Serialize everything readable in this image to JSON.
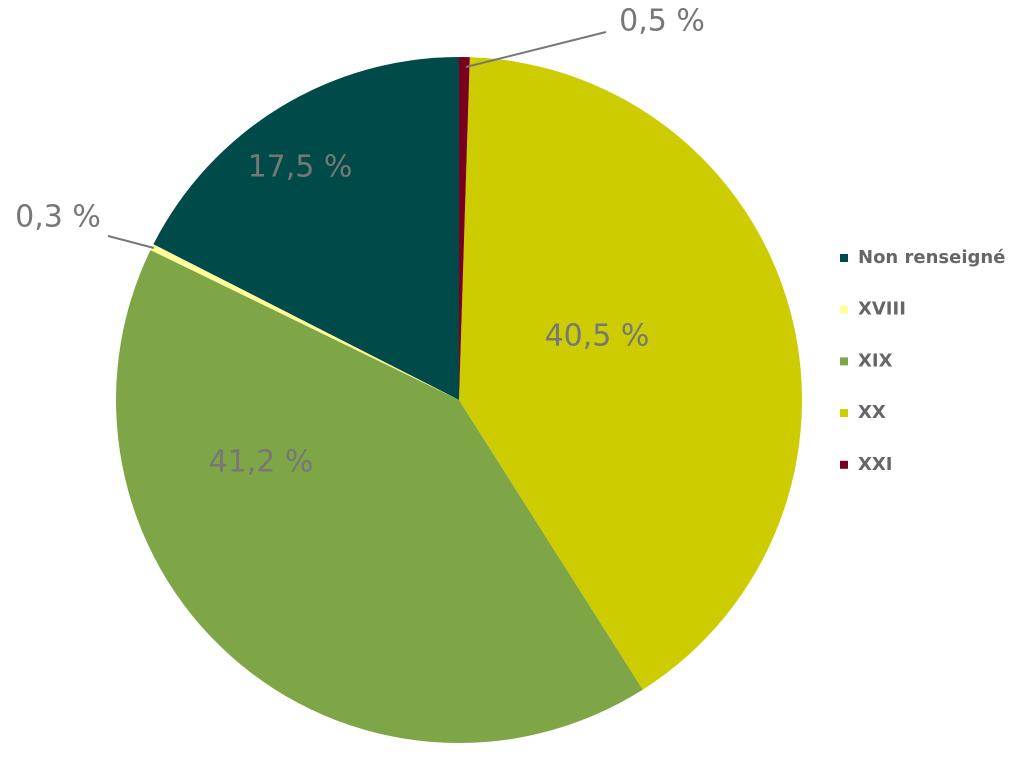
{
  "chart_data": {
    "type": "pie",
    "categories": [
      "Non renseigné",
      "XVIII",
      "XIX",
      "XX",
      "XXI"
    ],
    "values": [
      17.5,
      0.3,
      41.2,
      40.5,
      0.5
    ],
    "value_labels": [
      "17,5 %",
      "0,3 %",
      "41,2 %",
      "40,5 %",
      "0,5 %"
    ],
    "colors": [
      "#004a4a",
      "#ffff99",
      "#7ea646",
      "#cccc00",
      "#7a0020"
    ],
    "legend": "right"
  }
}
